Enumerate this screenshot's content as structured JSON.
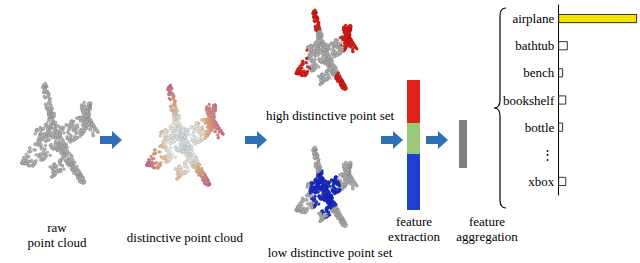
{
  "diagram": {
    "raw_point_cloud": [
      "raw",
      "point cloud"
    ],
    "distinctive_point_cloud": [
      "distinctive point cloud"
    ],
    "high_distinctive_point_set": [
      "high distinctive point set"
    ],
    "low_distinctive_point_set": [
      "low distinctive point set"
    ],
    "feature_extraction": [
      "feature",
      "extraction"
    ],
    "feature_aggregation": [
      "feature",
      "aggregation"
    ]
  },
  "chart_data": {
    "type": "bar",
    "orientation": "horizontal",
    "categories": [
      "airplane",
      "bathtub",
      "bench",
      "bookshelf",
      "bottle",
      "⋮",
      "xbox"
    ],
    "values": [
      1.0,
      0.12,
      0.06,
      0.1,
      0.06,
      null,
      0.1
    ],
    "colors": [
      "#f5e400",
      "#ffffff",
      "#ffffff",
      "#ffffff",
      "#ffffff",
      "#ffffff",
      "#ffffff"
    ],
    "xlim": [
      0,
      1
    ],
    "tick_labels": "y",
    "grid": false
  }
}
